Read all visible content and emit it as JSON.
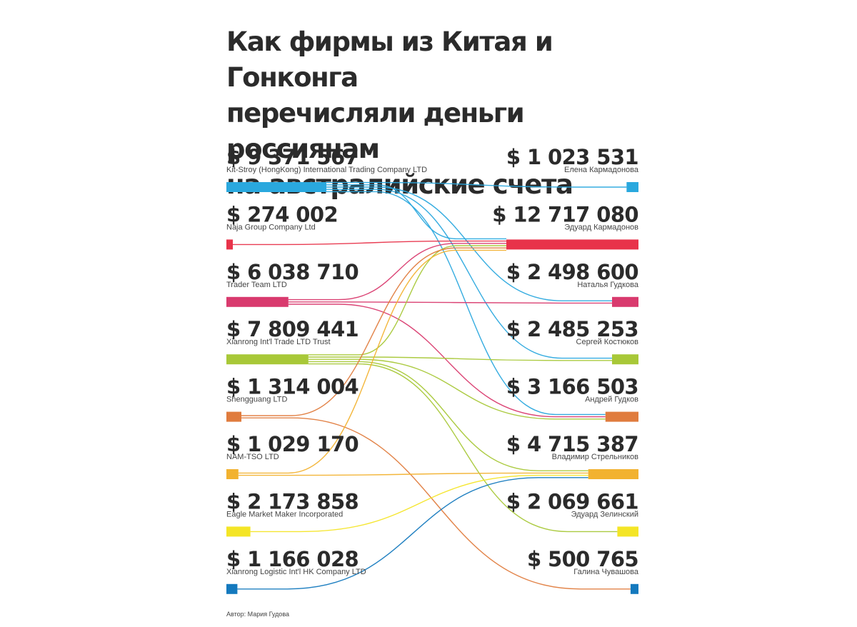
{
  "title_lines": [
    "Как фирмы из Китая и Гонконга",
    "перечисляли деньги россиянам",
    "на австралийские счета"
  ],
  "senders": [
    {
      "amount": "$ 9 371 567",
      "name": "Kit-Stroy (HongKong) International Trading Company LTD",
      "color": "#2aa8de",
      "bar": 1.0
    },
    {
      "amount": "$ 274 002",
      "name": "Naja Group Company Ltd",
      "color": "#e8334a",
      "bar": 0.05
    },
    {
      "amount": "$ 6 038 710",
      "name": "Trader Team LTD",
      "color": "#d93a6e",
      "bar": 0.62
    },
    {
      "amount": "$ 7 809 441",
      "name": "Xianrong Int'l Trade LTD Trust",
      "color": "#a8c838",
      "bar": 0.82
    },
    {
      "amount": "$ 1 314 004",
      "name": "Shengguang LTD",
      "color": "#e07c3e",
      "bar": 0.15
    },
    {
      "amount": "$ 1 029 170",
      "name": "NAM-TSO LTD",
      "color": "#f2b230",
      "bar": 0.12
    },
    {
      "amount": "$ 2 173 858",
      "name": "Eagle Market Maker Incorporated",
      "color": "#f4e526",
      "bar": 0.24
    },
    {
      "amount": "$ 1 166 028",
      "name": "Xianrong Logistic Int'l HK Company LTD",
      "color": "#1479be",
      "bar": 0.11
    }
  ],
  "recipients": [
    {
      "amount": "$ 1 023 531",
      "name": "Елена Кармадонова",
      "color": "#2aa8de",
      "bar": 0.09
    },
    {
      "amount": "$ 12 717 080",
      "name": "Эдуард Кармадонов",
      "color": "#e8334a",
      "bar": 1.0
    },
    {
      "amount": "$ 2 498 600",
      "name": "Наталья Гудкова",
      "color": "#d93a6e",
      "bar": 0.2
    },
    {
      "amount": "$ 2 485 253",
      "name": "Сергей Костюков",
      "color": "#a8c838",
      "bar": 0.2
    },
    {
      "amount": "$ 3 166 503",
      "name": "Андрей Гудков",
      "color": "#e07c3e",
      "bar": 0.25
    },
    {
      "amount": "$ 4 715 387",
      "name": "Владимир Стрельников",
      "color": "#f2b230",
      "bar": 0.38
    },
    {
      "amount": "$ 2 069 661",
      "name": "Эдуард Зелинский",
      "color": "#f4e526",
      "bar": 0.16
    },
    {
      "amount": "$ 500 765",
      "name": "Галина Чувашова",
      "color": "#1479be",
      "bar": 0.06
    }
  ],
  "flows": [
    {
      "from": 0,
      "to": 0
    },
    {
      "from": 0,
      "to": 1
    },
    {
      "from": 0,
      "to": 2
    },
    {
      "from": 0,
      "to": 3
    },
    {
      "from": 0,
      "to": 4
    },
    {
      "from": 1,
      "to": 1
    },
    {
      "from": 2,
      "to": 1
    },
    {
      "from": 2,
      "to": 2
    },
    {
      "from": 2,
      "to": 4
    },
    {
      "from": 3,
      "to": 1
    },
    {
      "from": 3,
      "to": 3
    },
    {
      "from": 3,
      "to": 4
    },
    {
      "from": 3,
      "to": 5
    },
    {
      "from": 3,
      "to": 6
    },
    {
      "from": 4,
      "to": 1
    },
    {
      "from": 4,
      "to": 7
    },
    {
      "from": 5,
      "to": 1
    },
    {
      "from": 5,
      "to": 5
    },
    {
      "from": 6,
      "to": 5
    },
    {
      "from": 7,
      "to": 5
    }
  ],
  "credit": "Автор: Мария Гудова"
}
